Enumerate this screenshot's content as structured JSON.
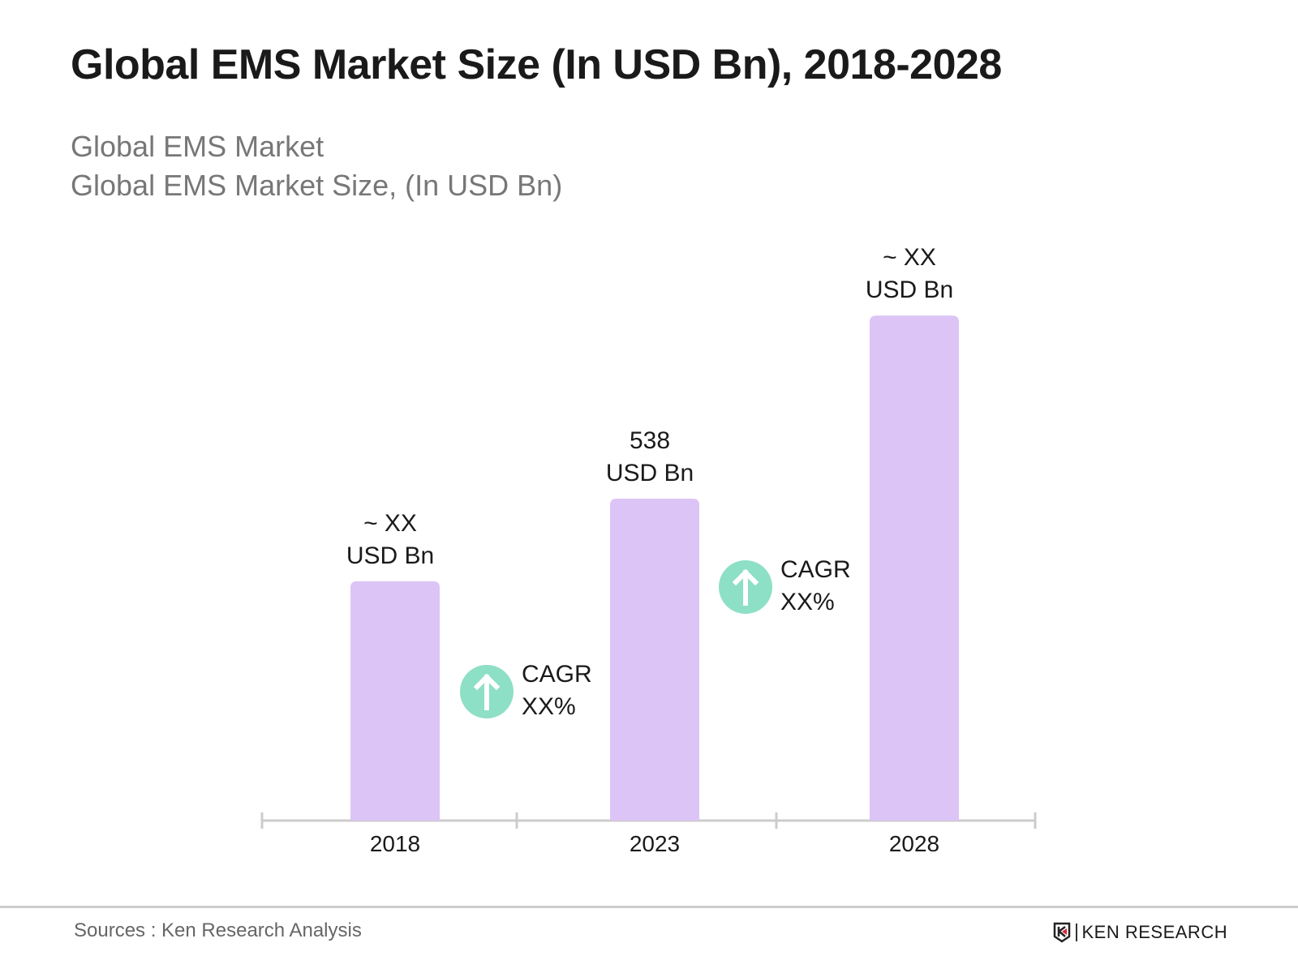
{
  "chart_data": {
    "type": "bar",
    "title": "Global EMS Market Size (In USD Bn), 2018-2028",
    "subtitle": [
      "Global EMS Market",
      "Global EMS Market Size, (In USD Bn)"
    ],
    "categories": [
      "2018",
      "2023",
      "2028"
    ],
    "values": [
      400,
      538,
      844
    ],
    "data_labels": [
      [
        "~ XX",
        "USD Bn"
      ],
      [
        "538",
        "USD Bn"
      ],
      [
        "~ XX",
        "USD Bn"
      ]
    ],
    "annotations": [
      {
        "between": [
          "2018",
          "2023"
        ],
        "lines": [
          "CAGR",
          "XX%"
        ],
        "icon": "arrow-up-circle-icon"
      },
      {
        "between": [
          "2023",
          "2028"
        ],
        "lines": [
          "CAGR",
          "XX%"
        ],
        "icon": "arrow-up-circle-icon"
      }
    ],
    "grid": false,
    "colors": {
      "bar": "#dcc4f6",
      "cagr_circle": "#8ddfc6",
      "axis": "#cccccc",
      "text": "#1a1a1a"
    }
  },
  "footer": {
    "source": "Sources : Ken Research Analysis",
    "logo": "KEN RESEARCH"
  }
}
